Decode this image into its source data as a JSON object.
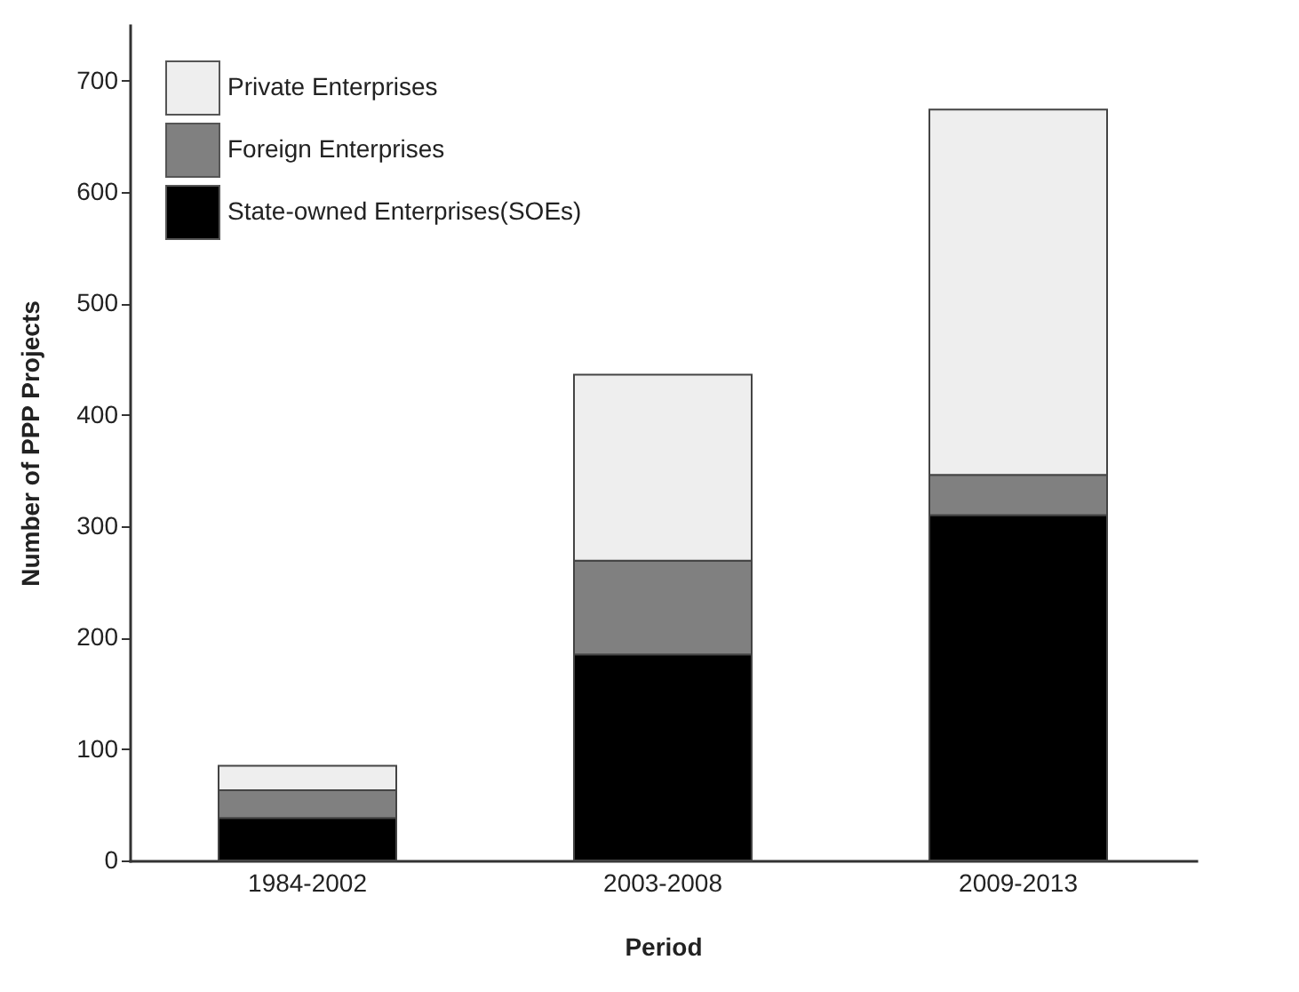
{
  "chart_data": {
    "type": "bar",
    "stacked": true,
    "xlabel": "Period",
    "ylabel": "Number of PPP Projects",
    "categories": [
      "1984-2002",
      "2003-2008",
      "2009-2013"
    ],
    "series": [
      {
        "name": "State-owned Enterprises(SOEs)",
        "color": "#000000",
        "values": [
          38,
          185,
          310
        ]
      },
      {
        "name": "Foreign Enterprises",
        "color": "#808080",
        "values": [
          25,
          84,
          36
        ]
      },
      {
        "name": "Private Enterprises",
        "color": "#eeeeee",
        "values": [
          22,
          167,
          328
        ]
      }
    ],
    "ylim": [
      0,
      750
    ],
    "yticks": [
      0,
      100,
      200,
      300,
      400,
      500,
      600,
      700
    ],
    "grid": false,
    "legend": "top left"
  }
}
